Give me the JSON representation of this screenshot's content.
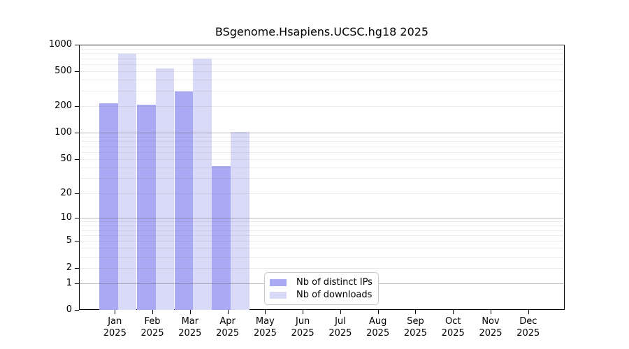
{
  "chart_data": {
    "type": "bar",
    "title": "BSgenome.Hsapiens.UCSC.hg18 2025",
    "year": "2025",
    "categories": [
      "Jan",
      "Feb",
      "Mar",
      "Apr",
      "May",
      "Jun",
      "Jul",
      "Aug",
      "Sep",
      "Oct",
      "Nov",
      "Dec"
    ],
    "series": [
      {
        "name": "Nb of distinct IPs",
        "color": "#a9a9f4",
        "values": [
          216,
          210,
          295,
          41,
          0,
          0,
          0,
          0,
          0,
          0,
          0,
          0
        ]
      },
      {
        "name": "Nb of downloads",
        "color": "#d9d9f8",
        "values": [
          795,
          535,
          700,
          102,
          0,
          0,
          0,
          0,
          0,
          0,
          0,
          0
        ]
      }
    ],
    "xlabel": "",
    "ylabel": "",
    "y_scale": "log10(1+x)",
    "ylim": [
      0,
      1000
    ],
    "y_ticks": [
      0,
      1,
      2,
      5,
      10,
      20,
      50,
      100,
      200,
      500,
      1000
    ],
    "y_grid_major": [
      1,
      10,
      100,
      1000
    ],
    "y_grid_minor": [
      2,
      3,
      4,
      5,
      6,
      7,
      8,
      9,
      20,
      30,
      40,
      50,
      60,
      70,
      80,
      90,
      200,
      300,
      400,
      500,
      600,
      700,
      800,
      900
    ],
    "grid": "horizontal",
    "legend_position": "bottom-center-left"
  }
}
